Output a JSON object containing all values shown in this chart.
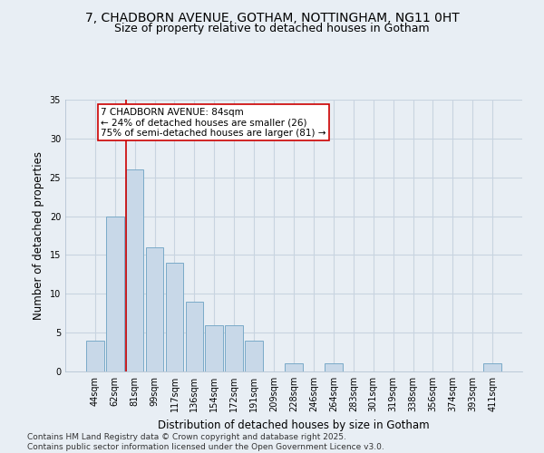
{
  "title1": "7, CHADBORN AVENUE, GOTHAM, NOTTINGHAM, NG11 0HT",
  "title2": "Size of property relative to detached houses in Gotham",
  "xlabel": "Distribution of detached houses by size in Gotham",
  "ylabel": "Number of detached properties",
  "categories": [
    "44sqm",
    "62sqm",
    "81sqm",
    "99sqm",
    "117sqm",
    "136sqm",
    "154sqm",
    "172sqm",
    "191sqm",
    "209sqm",
    "228sqm",
    "246sqm",
    "264sqm",
    "283sqm",
    "301sqm",
    "319sqm",
    "338sqm",
    "356sqm",
    "374sqm",
    "393sqm",
    "411sqm"
  ],
  "values": [
    4,
    20,
    26,
    16,
    14,
    9,
    6,
    6,
    4,
    0,
    1,
    0,
    1,
    0,
    0,
    0,
    0,
    0,
    0,
    0,
    1
  ],
  "bar_color": "#c8d8e8",
  "bar_edge_color": "#7aaac8",
  "vline_color": "#cc0000",
  "vline_x": 1.575,
  "annotation_text": "7 CHADBORN AVENUE: 84sqm\n← 24% of detached houses are smaller (26)\n75% of semi-detached houses are larger (81) →",
  "annotation_box_color": "#ffffff",
  "annotation_box_edge": "#cc0000",
  "ylim": [
    0,
    35
  ],
  "yticks": [
    0,
    5,
    10,
    15,
    20,
    25,
    30,
    35
  ],
  "background_color": "#e8eef4",
  "grid_color": "#c8d4e0",
  "footer": "Contains HM Land Registry data © Crown copyright and database right 2025.\nContains public sector information licensed under the Open Government Licence v3.0.",
  "title_fontsize": 10,
  "subtitle_fontsize": 9,
  "axis_label_fontsize": 8.5,
  "tick_fontsize": 7,
  "footer_fontsize": 6.5,
  "annot_fontsize": 7.5
}
